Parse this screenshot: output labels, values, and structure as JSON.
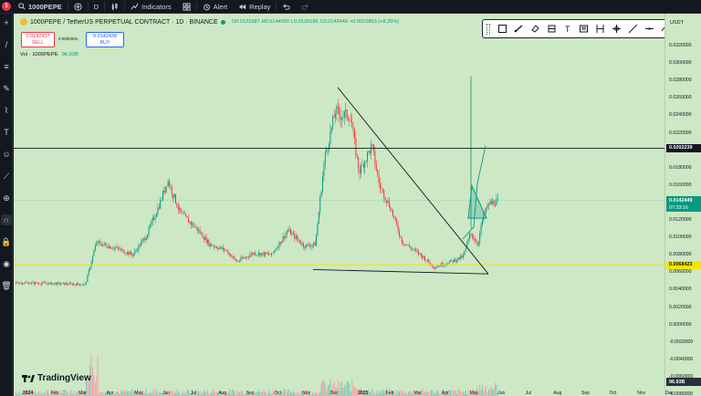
{
  "topbar": {
    "symbol": "1000PEPE",
    "interval": "D",
    "indicators_label": "Indicators",
    "alert_label": "Alert",
    "replay_label": "Replay",
    "badge_count": "1"
  },
  "legend": {
    "title": "1000PEPE / TetherUS PERPETUAL CONTRACT · 1D · BINANCE",
    "open": "O0.0131587",
    "high": "H0.0144000",
    "low": "L0.0130196",
    "close": "C0.0142449",
    "change": "+0.0010863 (+8.26%)"
  },
  "trade": {
    "sell_price": "0.0142437",
    "sell_label": "SELL",
    "spread": "0.0000001",
    "buy_price": "0.0142438",
    "buy_label": "BUY"
  },
  "volume": {
    "label": "Vol · 1000PEPE",
    "value": "96.93B"
  },
  "price_scale": {
    "currency": "USDT",
    "ticks": [
      "0.0320000",
      "0.0300000",
      "0.0280000",
      "0.0260000",
      "0.0240000",
      "0.0220000",
      "0.0200000",
      "0.0180000",
      "0.0160000",
      "0.0140000",
      "0.0120000",
      "0.0100000",
      "0.0080000",
      "0.0060000",
      "0.0040000",
      "0.0020000",
      "0.0000000",
      "-0.0020000",
      "-0.0040000",
      "-0.0060000",
      "-0.0080000"
    ],
    "horizontal_line_label": "0.0202239",
    "current_price_label": "0.0142449",
    "countdown": "07:33:16",
    "yellow_line_label": "0.0068423",
    "volume_label": "96.93B"
  },
  "x_axis": {
    "ticks": [
      "2024",
      "Feb",
      "Mar",
      "Apr",
      "May",
      "Jun",
      "Jul",
      "Aug",
      "Sep",
      "Oct",
      "Nov",
      "Dec",
      "2025",
      "Feb",
      "Mar",
      "Apr",
      "May",
      "Jun",
      "Jul",
      "Aug",
      "Sep",
      "Oct",
      "Nov",
      "Dec"
    ]
  },
  "branding": {
    "tradingview": "TradingView"
  },
  "colors": {
    "background": "#cde8c4",
    "up": "#089981",
    "down": "#f23645",
    "trendline": "#131722",
    "yellow_line": "#f5e600",
    "current_price": "#089981",
    "ui_dark": "#131722"
  },
  "drawing_toolbar": {
    "icons": [
      "rectangle-icon",
      "brush-icon",
      "eraser-icon",
      "magnet-icon",
      "text-icon",
      "measure-icon",
      "date-range-icon",
      "settings-icon",
      "line-icon",
      "horizontal-line-icon",
      "trend-icon"
    ]
  }
}
